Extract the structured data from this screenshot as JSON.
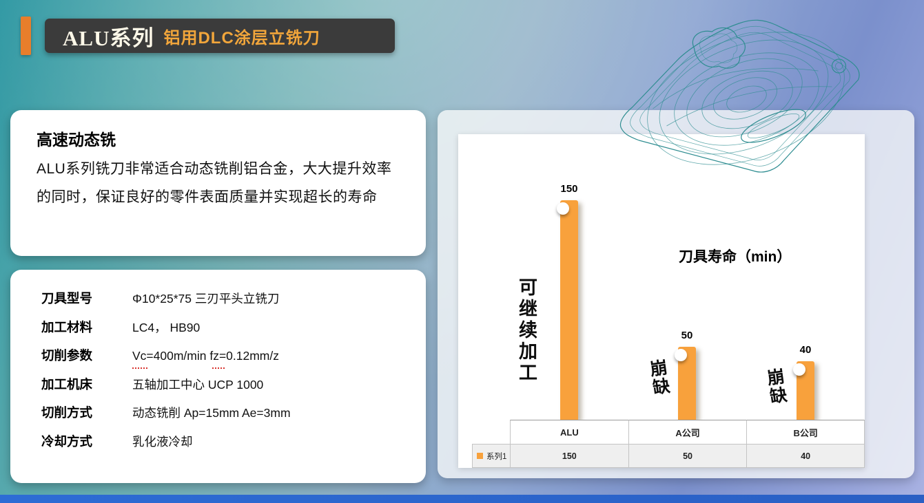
{
  "colors": {
    "accent": "#E87E2B",
    "bar": "#F8A13C",
    "subtitle": "#F2A63B",
    "header_bg": "#3B3B3B",
    "bottom_bar": "#2D6CD5",
    "toolpath": "#2F8D91"
  },
  "header": {
    "series": "ALU系列",
    "subtitle": "铝用DLC涂层立铣刀"
  },
  "intro_card": {
    "title": "高速动态铣",
    "body": "ALU系列铣刀非常适合动态铣削铝合金，大大提升效率的同时，保证良好的零件表面质量并实现超长的寿命"
  },
  "spec_card": {
    "rows": [
      {
        "label": "刀具型号",
        "value": "Φ10*25*75 三刃平头立铣刀"
      },
      {
        "label": "加工材料",
        "value": "LC4， HB90"
      },
      {
        "label": "切削参数",
        "value": "Vc=400m/min fz=0.12mm/z"
      },
      {
        "label": "加工机床",
        "value": "五轴加工中心 UCP 1000"
      },
      {
        "label": "切削方式",
        "value": "动态铣削 Ap=15mm Ae=3mm"
      },
      {
        "label": "冷却方式",
        "value": "乳化液冷却"
      }
    ]
  },
  "chart_data": {
    "type": "bar",
    "title": "刀具寿命（min）",
    "categories": [
      "ALU",
      "A公司",
      "B公司"
    ],
    "series": [
      {
        "name": "系列1",
        "values": [
          150,
          50,
          40
        ]
      }
    ],
    "ylim": [
      0,
      160
    ],
    "bar_color": "#F8A13C",
    "grid": false,
    "legend_position": "bottom-data-table",
    "data_table": true,
    "annotations": [
      {
        "target": "ALU",
        "text": "可继续加工"
      },
      {
        "target": "A公司",
        "text": "崩缺"
      },
      {
        "target": "B公司",
        "text": "崩缺"
      }
    ]
  }
}
